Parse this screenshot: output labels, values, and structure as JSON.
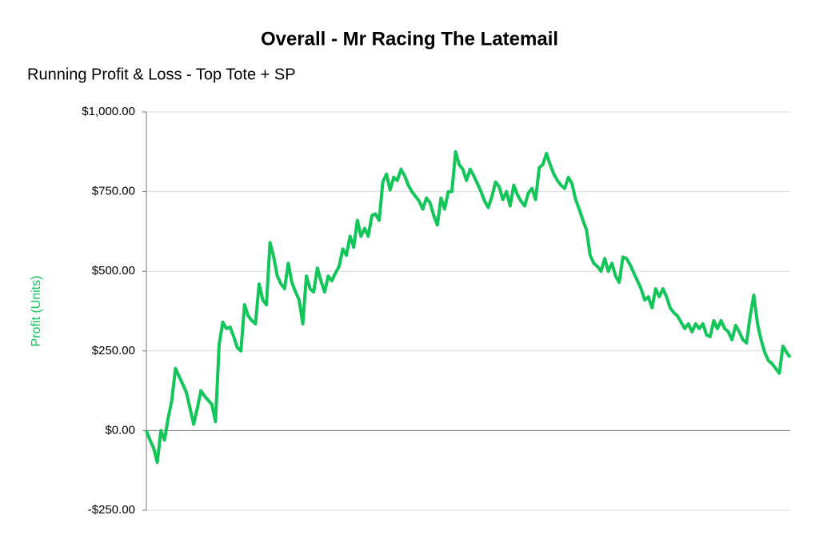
{
  "chart_data": {
    "type": "line",
    "title": "Overall - Mr Racing The Latemail",
    "subtitle": "Running Profit & Loss - Top Tote + SP",
    "y_label": "Profit (Units)",
    "ylim": [
      -250,
      1000
    ],
    "yticks": [
      {
        "value": -250,
        "label": "-$250.00"
      },
      {
        "value": 0,
        "label": "$0.00"
      },
      {
        "value": 250,
        "label": "$250.00"
      },
      {
        "value": 500,
        "label": "$500.00"
      },
      {
        "value": 750,
        "label": "$750.00"
      },
      {
        "value": 1000,
        "label": "$1,000.00"
      }
    ],
    "grid": true,
    "color": "#12c65a",
    "values": [
      0,
      -30,
      -55,
      -100,
      0,
      -30,
      40,
      95,
      195,
      170,
      145,
      120,
      70,
      20,
      70,
      125,
      108,
      95,
      82,
      28,
      270,
      340,
      320,
      325,
      295,
      260,
      250,
      395,
      360,
      345,
      335,
      460,
      410,
      395,
      590,
      545,
      485,
      460,
      445,
      525,
      465,
      435,
      410,
      335,
      485,
      445,
      435,
      510,
      470,
      435,
      485,
      470,
      495,
      515,
      570,
      550,
      610,
      575,
      660,
      610,
      635,
      610,
      675,
      680,
      660,
      780,
      805,
      755,
      795,
      785,
      820,
      800,
      770,
      750,
      735,
      720,
      695,
      730,
      715,
      675,
      645,
      730,
      695,
      750,
      750,
      875,
      835,
      820,
      785,
      820,
      800,
      775,
      750,
      720,
      700,
      735,
      780,
      765,
      725,
      750,
      705,
      770,
      740,
      720,
      705,
      745,
      760,
      725,
      825,
      835,
      870,
      835,
      805,
      785,
      770,
      760,
      795,
      775,
      725,
      695,
      660,
      630,
      550,
      525,
      515,
      500,
      540,
      500,
      525,
      485,
      465,
      545,
      540,
      520,
      495,
      470,
      445,
      410,
      420,
      385,
      445,
      420,
      445,
      420,
      385,
      370,
      360,
      340,
      320,
      335,
      310,
      335,
      320,
      335,
      300,
      295,
      345,
      320,
      345,
      320,
      310,
      285,
      330,
      310,
      285,
      275,
      360,
      425,
      335,
      285,
      245,
      220,
      210,
      195,
      180,
      265,
      245,
      230
    ]
  }
}
